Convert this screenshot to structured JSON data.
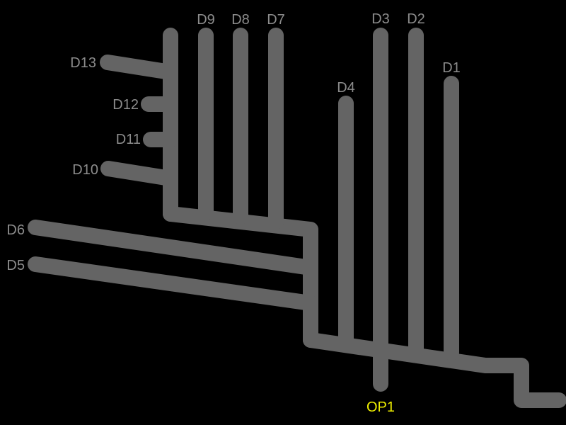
{
  "colors": {
    "background": "#000000",
    "pipe": "#646464",
    "drain_label": "#8c8c8c",
    "outlet_label": "#f0f000"
  },
  "drains": {
    "d1": "D1",
    "d2": "D2",
    "d3": "D3",
    "d4": "D4",
    "d5": "D5",
    "d6": "D6",
    "d7": "D7",
    "d8": "D8",
    "d9": "D9",
    "d10": "D10",
    "d11": "D11",
    "d12": "D12",
    "d13": "D13"
  },
  "outlet": {
    "op1": "OP1"
  }
}
